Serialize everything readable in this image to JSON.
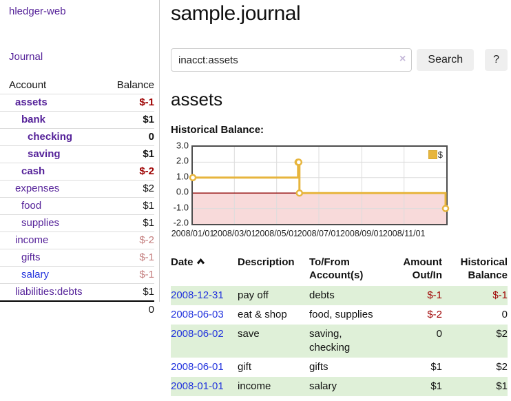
{
  "app": {
    "brand": "hledger-web"
  },
  "sidebar": {
    "nav": {
      "journal": "Journal"
    },
    "columns": {
      "account": "Account",
      "balance": "Balance"
    },
    "accounts": [
      {
        "name": "assets",
        "balance": "$-1"
      },
      {
        "name": "bank",
        "balance": "$1"
      },
      {
        "name": "checking",
        "balance": "0"
      },
      {
        "name": "saving",
        "balance": "$1"
      },
      {
        "name": "cash",
        "balance": "$-2"
      },
      {
        "name": "expenses",
        "balance": "$2"
      },
      {
        "name": "food",
        "balance": "$1"
      },
      {
        "name": "supplies",
        "balance": "$1"
      },
      {
        "name": "income",
        "balance": "$-2"
      },
      {
        "name": "gifts",
        "balance": "$-1"
      },
      {
        "name": "salary",
        "balance": "$-1"
      },
      {
        "name": "liabilities:debts",
        "balance": "$1"
      }
    ],
    "total": "0"
  },
  "header": {
    "title": "sample.journal"
  },
  "search": {
    "value": "inacct:assets",
    "clear_icon": "×",
    "button_label": "Search",
    "help_label": "?"
  },
  "account_view": {
    "heading": "assets",
    "chart_label": "Historical Balance:"
  },
  "chart_data": {
    "type": "line",
    "step": true,
    "title": "Historical Balance",
    "x": [
      "2008-01-01",
      "2008-06-01",
      "2008-06-02",
      "2008-06-03",
      "2008-12-31"
    ],
    "series": [
      {
        "name": "$",
        "values": [
          1,
          2,
          2,
          0,
          -1
        ]
      }
    ],
    "xlim": [
      "2008-01-01",
      "2009-01-01"
    ],
    "ylim": [
      -2,
      3
    ],
    "yticks": [
      "3.0",
      "2.0",
      "1.0",
      "0.0",
      "-1.0",
      "-2.0"
    ],
    "xticks": [
      "2008/01/01",
      "2008/03/01",
      "2008/05/01",
      "2008/07/01",
      "2008/09/01",
      "2008/11/01"
    ],
    "grid": true,
    "legend": [
      "$"
    ],
    "legend_position": "top-right",
    "colors": {
      "line": "#e7b53d",
      "marker_fill": "#ffffff",
      "negative_area": "#f8dada",
      "zero_line": "#8e0000",
      "gridline": "#dcdcdc"
    }
  },
  "register": {
    "headers": {
      "date": "Date",
      "description": "Description",
      "accounts": "To/From Account(s)",
      "amount": "Amount Out/In",
      "historical": "Historical Balance"
    },
    "rows": [
      {
        "date": "2008-12-31",
        "description": "pay off",
        "accounts": "debts",
        "amount": "$-1",
        "historical": "$-1"
      },
      {
        "date": "2008-06-03",
        "description": "eat & shop",
        "accounts": "food, supplies",
        "amount": "$-2",
        "historical": "0"
      },
      {
        "date": "2008-06-02",
        "description": "save",
        "accounts": "saving, checking",
        "amount": "0",
        "historical": "$2"
      },
      {
        "date": "2008-06-01",
        "description": "gift",
        "accounts": "gifts",
        "amount": "$1",
        "historical": "$2"
      },
      {
        "date": "2008-01-01",
        "description": "income",
        "accounts": "salary",
        "amount": "$1",
        "historical": "$1"
      }
    ]
  }
}
